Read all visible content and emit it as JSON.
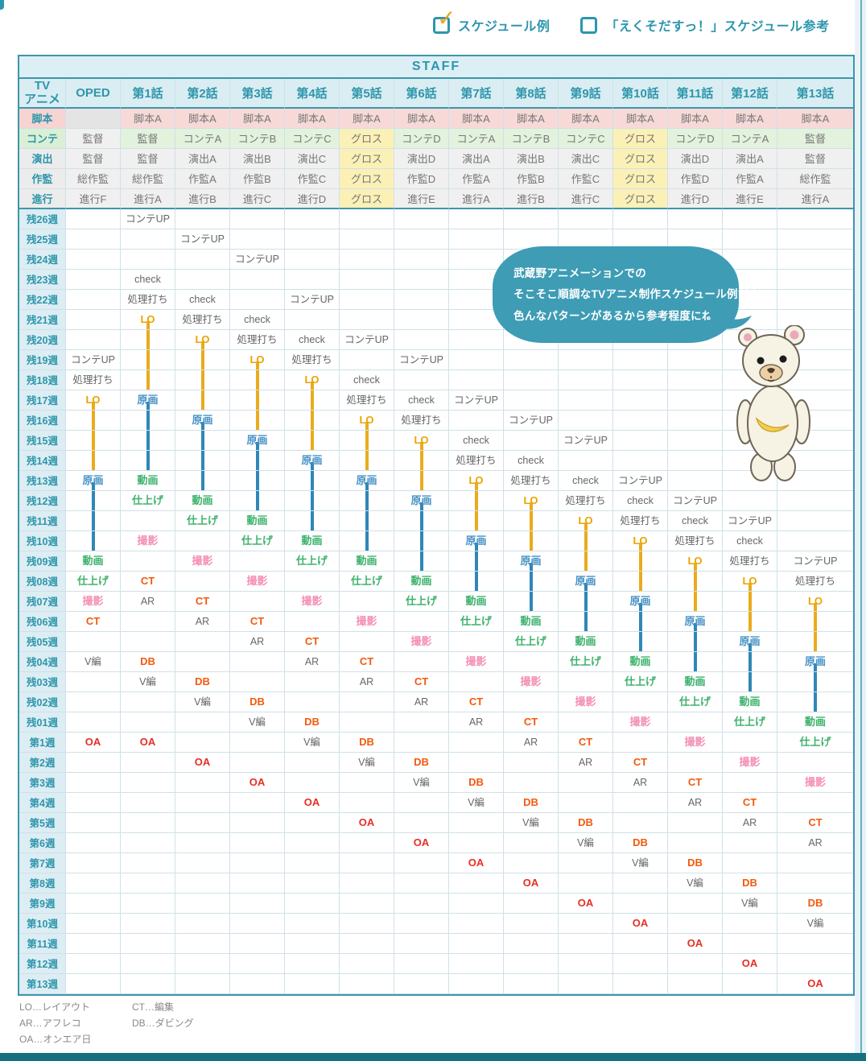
{
  "page": {
    "filters": [
      {
        "label": "スケジュール例",
        "checked": true
      },
      {
        "label": "「えくそだすっ！」スケジュール参考",
        "checked": false
      }
    ]
  },
  "bubble": {
    "line1": "武蔵野アニメーションでの",
    "line2": "そこそこ順調なTVアニメ制作スケジュール例だよ。",
    "line3": "色んなパターンがあるから参考程度にね。"
  },
  "table": {
    "staff_band_label": "STAFF",
    "corner_top": "TV",
    "corner_bottom": "アニメ",
    "episode_columns": [
      "OPED",
      "第1話",
      "第2話",
      "第3話",
      "第4話",
      "第5話",
      "第6話",
      "第7話",
      "第8話",
      "第9話",
      "第10話",
      "第11話",
      "第12話",
      "第13話"
    ],
    "staff_rows": [
      {
        "label": "脚本",
        "cells": [
          "",
          "脚本A",
          "脚本A",
          "脚本A",
          "脚本A",
          "脚本A",
          "脚本A",
          "脚本A",
          "脚本A",
          "脚本A",
          "脚本A",
          "脚本A",
          "脚本A",
          "脚本A"
        ]
      },
      {
        "label": "コンテ",
        "cells": [
          "監督",
          "監督",
          "コンテA",
          "コンテB",
          "コンテC",
          "グロス",
          "コンテD",
          "コンテA",
          "コンテB",
          "コンテC",
          "グロス",
          "コンテD",
          "コンテA",
          "監督"
        ]
      },
      {
        "label": "演出",
        "cells": [
          "監督",
          "監督",
          "演出A",
          "演出B",
          "演出C",
          "グロス",
          "演出D",
          "演出A",
          "演出B",
          "演出C",
          "グロス",
          "演出D",
          "演出A",
          "監督"
        ]
      },
      {
        "label": "作監",
        "cells": [
          "総作監",
          "総作監",
          "作監A",
          "作監B",
          "作監C",
          "グロス",
          "作監D",
          "作監A",
          "作監B",
          "作監C",
          "グロス",
          "作監D",
          "作監A",
          "総作監"
        ]
      },
      {
        "label": "進行",
        "cells": [
          "進行F",
          "進行A",
          "進行B",
          "進行C",
          "進行D",
          "グロス",
          "進行E",
          "進行A",
          "進行B",
          "進行C",
          "グロス",
          "進行D",
          "進行E",
          "進行A"
        ]
      }
    ],
    "week_labels": [
      "残26週",
      "残25週",
      "残24週",
      "残23週",
      "残22週",
      "残21週",
      "残20週",
      "残19週",
      "残18週",
      "残17週",
      "残16週",
      "残15週",
      "残14週",
      "残13週",
      "残12週",
      "残11週",
      "残10週",
      "残09週",
      "残08週",
      "残07週",
      "残06週",
      "残05週",
      "残04週",
      "残03週",
      "残02週",
      "残01週",
      "第1週",
      "第2週",
      "第3週",
      "第4週",
      "第5週",
      "第6週",
      "第7週",
      "第8週",
      "第9週",
      "第10週",
      "第11週",
      "第12週",
      "第13週"
    ],
    "schedule": [
      {
        "column": "OPED",
        "events": [
          [
            "残19週",
            "コンテUP"
          ],
          [
            "残18週",
            "処理打ち"
          ],
          [
            "残17週",
            "LO"
          ],
          [
            "残13週",
            "原画"
          ],
          [
            "残09週",
            "動画"
          ],
          [
            "残08週",
            "仕上げ"
          ],
          [
            "残07週",
            "撮影"
          ],
          [
            "残06週",
            "CT"
          ],
          [
            "残04週",
            "V編"
          ],
          [
            "第1週",
            "OA"
          ]
        ]
      },
      {
        "column": "第1話",
        "events": [
          [
            "残26週",
            "コンテUP"
          ],
          [
            "残23週",
            "check"
          ],
          [
            "残22週",
            "処理打ち"
          ],
          [
            "残21週",
            "LO"
          ],
          [
            "残17週",
            "原画"
          ],
          [
            "残13週",
            "動画"
          ],
          [
            "残12週",
            "仕上げ"
          ],
          [
            "残10週",
            "撮影"
          ],
          [
            "残08週",
            "CT"
          ],
          [
            "残07週",
            "AR"
          ],
          [
            "残04週",
            "DB"
          ],
          [
            "残03週",
            "V編"
          ],
          [
            "第1週",
            "OA"
          ]
        ]
      },
      {
        "column": "第2話",
        "events": [
          [
            "残25週",
            "コンテUP"
          ],
          [
            "残22週",
            "check"
          ],
          [
            "残21週",
            "処理打ち"
          ],
          [
            "残20週",
            "LO"
          ],
          [
            "残16週",
            "原画"
          ],
          [
            "残12週",
            "動画"
          ],
          [
            "残11週",
            "仕上げ"
          ],
          [
            "残09週",
            "撮影"
          ],
          [
            "残07週",
            "CT"
          ],
          [
            "残06週",
            "AR"
          ],
          [
            "残03週",
            "DB"
          ],
          [
            "残02週",
            "V編"
          ],
          [
            "第2週",
            "OA"
          ]
        ]
      },
      {
        "column": "第3話",
        "events": [
          [
            "残24週",
            "コンテUP"
          ],
          [
            "残21週",
            "check"
          ],
          [
            "残20週",
            "処理打ち"
          ],
          [
            "残19週",
            "LO"
          ],
          [
            "残15週",
            "原画"
          ],
          [
            "残11週",
            "動画"
          ],
          [
            "残10週",
            "仕上げ"
          ],
          [
            "残08週",
            "撮影"
          ],
          [
            "残06週",
            "CT"
          ],
          [
            "残05週",
            "AR"
          ],
          [
            "残02週",
            "DB"
          ],
          [
            "残01週",
            "V編"
          ],
          [
            "第3週",
            "OA"
          ]
        ]
      },
      {
        "column": "第4話",
        "events": [
          [
            "残22週",
            "コンテUP"
          ],
          [
            "残20週",
            "check"
          ],
          [
            "残19週",
            "処理打ち"
          ],
          [
            "残18週",
            "LO"
          ],
          [
            "残14週",
            "原画"
          ],
          [
            "残10週",
            "動画"
          ],
          [
            "残09週",
            "仕上げ"
          ],
          [
            "残07週",
            "撮影"
          ],
          [
            "残05週",
            "CT"
          ],
          [
            "残04週",
            "AR"
          ],
          [
            "残01週",
            "DB"
          ],
          [
            "第1週",
            "V編"
          ],
          [
            "第4週",
            "OA"
          ]
        ]
      },
      {
        "column": "第5話",
        "events": [
          [
            "残20週",
            "コンテUP"
          ],
          [
            "残18週",
            "check"
          ],
          [
            "残17週",
            "処理打ち"
          ],
          [
            "残16週",
            "LO"
          ],
          [
            "残13週",
            "原画"
          ],
          [
            "残09週",
            "動画"
          ],
          [
            "残08週",
            "仕上げ"
          ],
          [
            "残06週",
            "撮影"
          ],
          [
            "残04週",
            "CT"
          ],
          [
            "残03週",
            "AR"
          ],
          [
            "第1週",
            "DB"
          ],
          [
            "第2週",
            "V編"
          ],
          [
            "第5週",
            "OA"
          ]
        ]
      },
      {
        "column": "第6話",
        "events": [
          [
            "残19週",
            "コンテUP"
          ],
          [
            "残17週",
            "check"
          ],
          [
            "残16週",
            "処理打ち"
          ],
          [
            "残15週",
            "LO"
          ],
          [
            "残12週",
            "原画"
          ],
          [
            "残08週",
            "動画"
          ],
          [
            "残07週",
            "仕上げ"
          ],
          [
            "残05週",
            "撮影"
          ],
          [
            "残03週",
            "CT"
          ],
          [
            "残02週",
            "AR"
          ],
          [
            "第2週",
            "DB"
          ],
          [
            "第3週",
            "V編"
          ],
          [
            "第6週",
            "OA"
          ]
        ]
      },
      {
        "column": "第7話",
        "events": [
          [
            "残17週",
            "コンテUP"
          ],
          [
            "残15週",
            "check"
          ],
          [
            "残14週",
            "処理打ち"
          ],
          [
            "残13週",
            "LO"
          ],
          [
            "残10週",
            "原画"
          ],
          [
            "残07週",
            "動画"
          ],
          [
            "残06週",
            "仕上げ"
          ],
          [
            "残04週",
            "撮影"
          ],
          [
            "残02週",
            "CT"
          ],
          [
            "残01週",
            "AR"
          ],
          [
            "第3週",
            "DB"
          ],
          [
            "第4週",
            "V編"
          ],
          [
            "第7週",
            "OA"
          ]
        ]
      },
      {
        "column": "第8話",
        "events": [
          [
            "残16週",
            "コンテUP"
          ],
          [
            "残14週",
            "check"
          ],
          [
            "残13週",
            "処理打ち"
          ],
          [
            "残12週",
            "LO"
          ],
          [
            "残09週",
            "原画"
          ],
          [
            "残06週",
            "動画"
          ],
          [
            "残05週",
            "仕上げ"
          ],
          [
            "残03週",
            "撮影"
          ],
          [
            "残01週",
            "CT"
          ],
          [
            "第1週",
            "AR"
          ],
          [
            "第4週",
            "DB"
          ],
          [
            "第5週",
            "V編"
          ],
          [
            "第8週",
            "OA"
          ]
        ]
      },
      {
        "column": "第9話",
        "events": [
          [
            "残15週",
            "コンテUP"
          ],
          [
            "残13週",
            "check"
          ],
          [
            "残12週",
            "処理打ち"
          ],
          [
            "残11週",
            "LO"
          ],
          [
            "残08週",
            "原画"
          ],
          [
            "残05週",
            "動画"
          ],
          [
            "残04週",
            "仕上げ"
          ],
          [
            "残02週",
            "撮影"
          ],
          [
            "第1週",
            "CT"
          ],
          [
            "第2週",
            "AR"
          ],
          [
            "第5週",
            "DB"
          ],
          [
            "第6週",
            "V編"
          ],
          [
            "第9週",
            "OA"
          ]
        ]
      },
      {
        "column": "第10話",
        "events": [
          [
            "残13週",
            "コンテUP"
          ],
          [
            "残12週",
            "check"
          ],
          [
            "残11週",
            "処理打ち"
          ],
          [
            "残10週",
            "LO"
          ],
          [
            "残07週",
            "原画"
          ],
          [
            "残04週",
            "動画"
          ],
          [
            "残03週",
            "仕上げ"
          ],
          [
            "残01週",
            "撮影"
          ],
          [
            "第2週",
            "CT"
          ],
          [
            "第3週",
            "AR"
          ],
          [
            "第6週",
            "DB"
          ],
          [
            "第7週",
            "V編"
          ],
          [
            "第10週",
            "OA"
          ]
        ]
      },
      {
        "column": "第11話",
        "events": [
          [
            "残12週",
            "コンテUP"
          ],
          [
            "残11週",
            "check"
          ],
          [
            "残10週",
            "処理打ち"
          ],
          [
            "残09週",
            "LO"
          ],
          [
            "残06週",
            "原画"
          ],
          [
            "残03週",
            "動画"
          ],
          [
            "残02週",
            "仕上げ"
          ],
          [
            "第1週",
            "撮影"
          ],
          [
            "第3週",
            "CT"
          ],
          [
            "第4週",
            "AR"
          ],
          [
            "第7週",
            "DB"
          ],
          [
            "第8週",
            "V編"
          ],
          [
            "第11週",
            "OA"
          ]
        ]
      },
      {
        "column": "第12話",
        "events": [
          [
            "残11週",
            "コンテUP"
          ],
          [
            "残10週",
            "check"
          ],
          [
            "残09週",
            "処理打ち"
          ],
          [
            "残08週",
            "LO"
          ],
          [
            "残05週",
            "原画"
          ],
          [
            "残02週",
            "動画"
          ],
          [
            "残01週",
            "仕上げ"
          ],
          [
            "第2週",
            "撮影"
          ],
          [
            "第4週",
            "CT"
          ],
          [
            "第5週",
            "AR"
          ],
          [
            "第8週",
            "DB"
          ],
          [
            "第9週",
            "V編"
          ],
          [
            "第12週",
            "OA"
          ]
        ]
      },
      {
        "column": "第13話",
        "events": [
          [
            "残09週",
            "コンテUP"
          ],
          [
            "残08週",
            "処理打ち"
          ],
          [
            "残07週",
            "LO"
          ],
          [
            "残04週",
            "原画"
          ],
          [
            "残01週",
            "動画"
          ],
          [
            "第1週",
            "仕上げ"
          ],
          [
            "第3週",
            "撮影"
          ],
          [
            "第5週",
            "CT"
          ],
          [
            "第6週",
            "AR"
          ],
          [
            "第9週",
            "DB"
          ],
          [
            "第10週",
            "V編"
          ],
          [
            "第13週",
            "OA"
          ]
        ]
      }
    ],
    "line_rules": [
      {
        "from": "LO",
        "to": "原画",
        "color": "#eaab1c"
      },
      {
        "from": "原画",
        "to": "動画",
        "color": "#2f87b7"
      }
    ],
    "label_colors": {
      "コンテUP": "#666666",
      "check": "#666666",
      "処理打ち": "#666666",
      "LO": "#eaa400",
      "原画": "#4793c6",
      "動画": "#3eb26d",
      "仕上げ": "#3eb26d",
      "撮影": "#f48fb4",
      "CT": "#f25a0e",
      "AR": "#666666",
      "DB": "#f25a0e",
      "V編": "#666666",
      "OA": "#e62e23"
    }
  },
  "legend": {
    "items": [
      "LO…レイアウト",
      "CT…編集",
      "AR…アフレコ",
      "DB…ダビング",
      "OA…オンエア日"
    ]
  },
  "colors": {
    "accent_teal": "#2d96ad",
    "table_border": "#3d96aa",
    "grid_line": "#cfe1e8",
    "bubble": "#3e9cb5",
    "check": "#efa51b",
    "bottom_bar": "#15707f"
  }
}
